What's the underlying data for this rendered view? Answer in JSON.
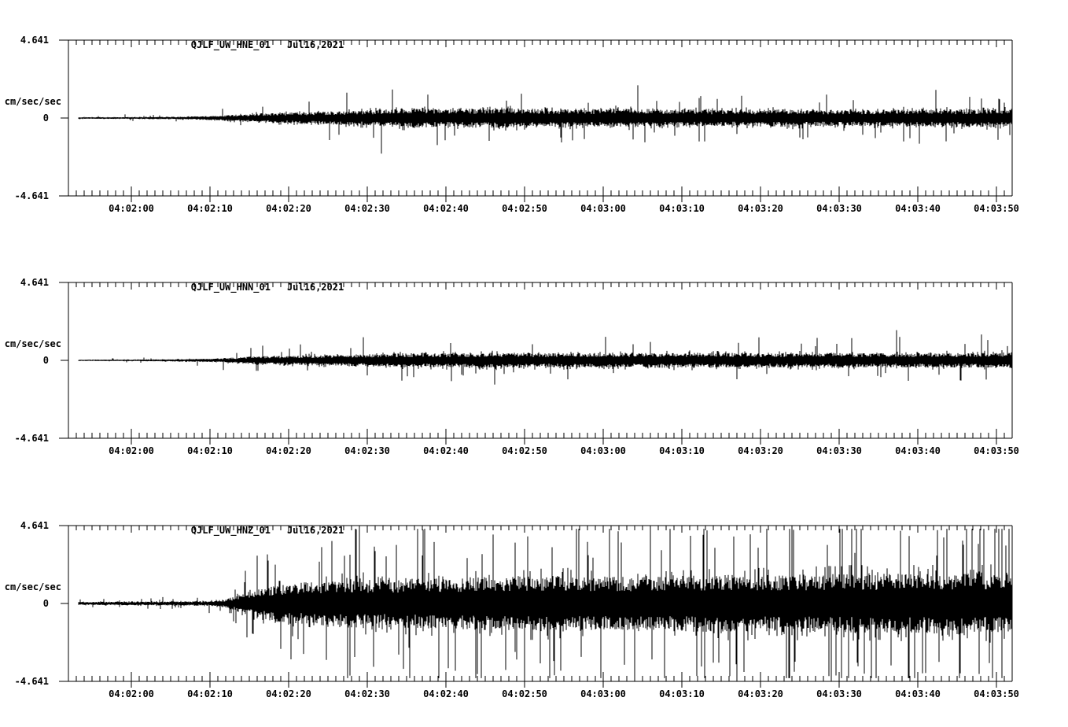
{
  "colors": {
    "background": "#ffffff",
    "trace": "#000000",
    "text": "#000000",
    "axis": "#000000"
  },
  "chart_data": [
    {
      "type": "line",
      "series_kind": "seismogram-min-max-trace",
      "station": "QJLF_UW_HNE_01",
      "date": "Jul16,2021",
      "title": "QJLF_UW_HNE_01   Jul16,2021",
      "ylabel": "cm/sec/sec",
      "ylim": [
        -4.641,
        4.641
      ],
      "yticks": [
        "4.641",
        "0",
        "-4.641"
      ],
      "x_window": [
        "04:01:52",
        "04:03:52"
      ],
      "x_total_sec": 120,
      "x_major_step_sec": 10,
      "x_minor_step_sec": 1,
      "x_tick_labels": [
        "04:02:00",
        "04:02:10",
        "04:02:20",
        "04:02:30",
        "04:02:40",
        "04:02:50",
        "04:03:00",
        "04:03:10",
        "04:03:20",
        "04:03:30",
        "04:03:40",
        "04:03:50"
      ],
      "trace_start_sec": 1.3,
      "envelope_t_sec": [
        1.3,
        8,
        14,
        18,
        21,
        24,
        28,
        32,
        36,
        40,
        44,
        48,
        52,
        56,
        60,
        65,
        70,
        75,
        80,
        85,
        90,
        95,
        100,
        105,
        110,
        115,
        120
      ],
      "envelope_amp": [
        0.05,
        0.06,
        0.08,
        0.12,
        0.2,
        0.28,
        0.33,
        0.38,
        0.42,
        0.5,
        0.6,
        0.52,
        0.55,
        0.6,
        0.55,
        0.5,
        0.58,
        0.52,
        0.5,
        0.48,
        0.52,
        0.5,
        0.48,
        0.52,
        0.5,
        0.52,
        0.55
      ],
      "spike_prob": 0.03,
      "spike_cap": 2.35,
      "seed": 101
    },
    {
      "type": "line",
      "series_kind": "seismogram-min-max-trace",
      "station": "QJLF_UW_HNN_01",
      "date": "Jul16,2021",
      "title": "QJLF_UW_HNN_01   Jul16,2021",
      "ylabel": "cm/sec/sec",
      "ylim": [
        -4.641,
        4.641
      ],
      "yticks": [
        "4.641",
        "0",
        "-4.641"
      ],
      "x_window": [
        "04:01:52",
        "04:03:52"
      ],
      "x_total_sec": 120,
      "x_major_step_sec": 10,
      "x_minor_step_sec": 1,
      "x_tick_labels": [
        "04:02:00",
        "04:02:10",
        "04:02:20",
        "04:02:30",
        "04:02:40",
        "04:02:50",
        "04:03:00",
        "04:03:10",
        "04:03:20",
        "04:03:30",
        "04:03:40",
        "04:03:50"
      ],
      "trace_start_sec": 1.3,
      "envelope_t_sec": [
        1.3,
        8,
        14,
        18,
        21,
        24,
        28,
        32,
        36,
        40,
        45,
        50,
        55,
        60,
        65,
        70,
        75,
        80,
        85,
        90,
        95,
        100,
        105,
        110,
        115,
        120
      ],
      "envelope_amp": [
        0.04,
        0.05,
        0.07,
        0.1,
        0.17,
        0.24,
        0.28,
        0.32,
        0.36,
        0.4,
        0.44,
        0.42,
        0.45,
        0.42,
        0.44,
        0.42,
        0.45,
        0.46,
        0.44,
        0.42,
        0.45,
        0.44,
        0.42,
        0.45,
        0.43,
        0.48
      ],
      "spike_prob": 0.025,
      "spike_cap": 1.8,
      "seed": 202
    },
    {
      "type": "line",
      "series_kind": "seismogram-min-max-trace",
      "station": "QJLF_UW_HNZ_01",
      "date": "Jul16,2021",
      "title": "QJLF_UW_HNZ_01   Jul16,2021",
      "ylabel": "cm/sec/sec",
      "ylim": [
        -4.641,
        4.641
      ],
      "yticks": [
        "4.641",
        "0",
        "-4.641"
      ],
      "x_window": [
        "04:01:52",
        "04:03:52"
      ],
      "x_total_sec": 120,
      "x_major_step_sec": 10,
      "x_minor_step_sec": 1,
      "x_tick_labels": [
        "04:02:00",
        "04:02:10",
        "04:02:20",
        "04:02:30",
        "04:02:40",
        "04:02:50",
        "04:03:00",
        "04:03:10",
        "04:03:20",
        "04:03:30",
        "04:03:40",
        "04:03:50"
      ],
      "trace_start_sec": 1.3,
      "envelope_t_sec": [
        1.3,
        8,
        14,
        18,
        20,
        22,
        24,
        26,
        28,
        32,
        36,
        40,
        45,
        50,
        55,
        60,
        65,
        70,
        75,
        80,
        85,
        90,
        95,
        100,
        105,
        110,
        115,
        120
      ],
      "envelope_amp": [
        0.09,
        0.11,
        0.12,
        0.14,
        0.25,
        0.55,
        0.85,
        1.05,
        1.2,
        1.35,
        1.45,
        1.4,
        1.5,
        1.55,
        1.6,
        1.7,
        1.65,
        1.6,
        1.65,
        1.7,
        1.72,
        1.68,
        1.75,
        1.8,
        1.75,
        1.8,
        1.78,
        1.85
      ],
      "spike_prob": 0.065,
      "spike_cap": 4.45,
      "seed": 303
    }
  ]
}
